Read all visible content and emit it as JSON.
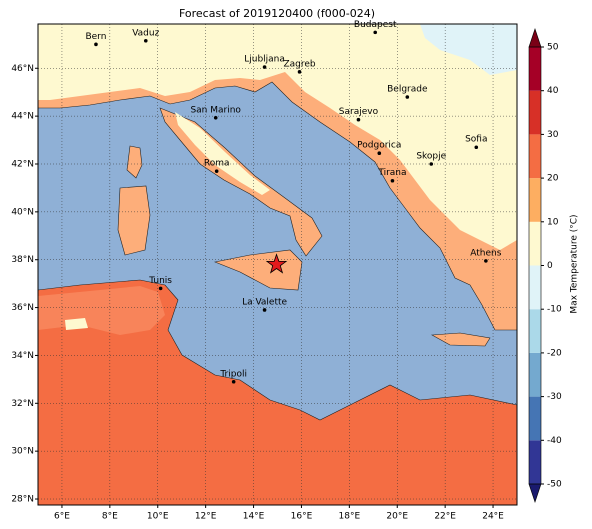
{
  "title": "Forecast of 2019120400 (f000-024)",
  "map": {
    "lon_range": [
      5,
      25
    ],
    "lat_range": [
      27.75,
      47.85
    ],
    "lon_ticks": [
      {
        "value": 6,
        "label": "6°E"
      },
      {
        "value": 8,
        "label": "8°E"
      },
      {
        "value": 10,
        "label": "10°E"
      },
      {
        "value": 12,
        "label": "12°E"
      },
      {
        "value": 14,
        "label": "14°E"
      },
      {
        "value": 16,
        "label": "16°E"
      },
      {
        "value": 18,
        "label": "18°E"
      },
      {
        "value": 20,
        "label": "20°E"
      },
      {
        "value": 22,
        "label": "22°E"
      },
      {
        "value": 24,
        "label": "24°E"
      }
    ],
    "lat_ticks": [
      {
        "value": 28,
        "label": "28°N"
      },
      {
        "value": 30,
        "label": "30°N"
      },
      {
        "value": 32,
        "label": "32°N"
      },
      {
        "value": 34,
        "label": "34°N"
      },
      {
        "value": 36,
        "label": "36°N"
      },
      {
        "value": 38,
        "label": "38°N"
      },
      {
        "value": 40,
        "label": "40°N"
      },
      {
        "value": 42,
        "label": "42°N"
      },
      {
        "value": 44,
        "label": "44°N"
      },
      {
        "value": 46,
        "label": "46°N"
      }
    ],
    "cities": [
      {
        "name": "Bern",
        "lon": 7.42,
        "lat": 47.0
      },
      {
        "name": "Vaduz",
        "lon": 9.5,
        "lat": 47.15
      },
      {
        "name": "Budapest",
        "lon": 19.08,
        "lat": 47.5
      },
      {
        "name": "Ljubljana",
        "lon": 14.46,
        "lat": 46.05
      },
      {
        "name": "Zagreb",
        "lon": 15.92,
        "lat": 45.85
      },
      {
        "name": "Belgrade",
        "lon": 20.42,
        "lat": 44.8
      },
      {
        "name": "San Marino",
        "lon": 12.42,
        "lat": 43.93
      },
      {
        "name": "Sarajevo",
        "lon": 18.38,
        "lat": 43.85
      },
      {
        "name": "Sofia",
        "lon": 23.3,
        "lat": 42.7
      },
      {
        "name": "Roma",
        "lon": 12.46,
        "lat": 41.7
      },
      {
        "name": "Podgorica",
        "lon": 19.25,
        "lat": 42.45
      },
      {
        "name": "Skopje",
        "lon": 21.42,
        "lat": 42.0
      },
      {
        "name": "Tirana",
        "lon": 19.8,
        "lat": 41.3
      },
      {
        "name": "Athens",
        "lon": 23.7,
        "lat": 37.95
      },
      {
        "name": "Tunis",
        "lon": 10.12,
        "lat": 36.8
      },
      {
        "name": "La Valette",
        "lon": 14.46,
        "lat": 35.9
      },
      {
        "name": "Tripoli",
        "lon": 13.17,
        "lat": 32.9
      }
    ],
    "marker": {
      "lon": 14.96,
      "lat": 37.8,
      "color": "#e41a1c"
    }
  },
  "colorbar": {
    "label": "Max Temperature (°C)",
    "levels": [
      -50,
      -40,
      -30,
      -20,
      -10,
      0,
      10,
      20,
      30,
      40,
      50
    ],
    "colors": [
      "#313695",
      "#4575b4",
      "#74a9cf",
      "#abd9e9",
      "#e0f3f8",
      "#fef9d0",
      "#fdae61",
      "#f46d43",
      "#d73027",
      "#a50026"
    ],
    "under_color": "#1a1a6e",
    "over_color": "#7a0016",
    "ticks": [
      -50,
      -40,
      -30,
      -20,
      -10,
      0,
      10,
      20,
      30,
      40,
      50
    ]
  }
}
